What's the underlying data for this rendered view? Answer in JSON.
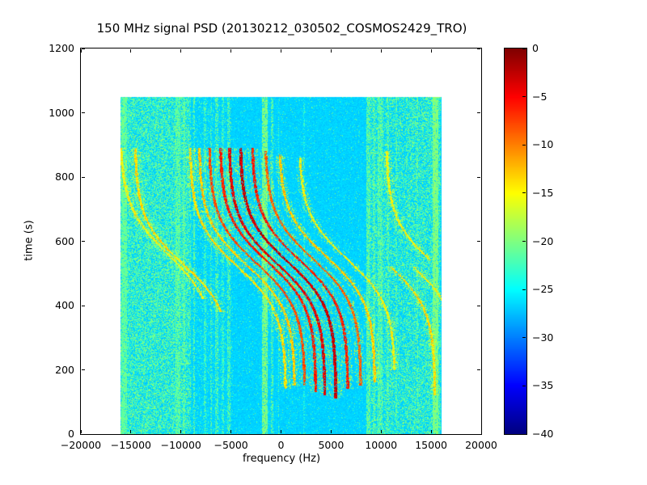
{
  "figure": {
    "background": "#ffffff"
  },
  "chart_data": {
    "type": "heatmap",
    "title": "150 MHz signal PSD (20130212_030502_COSMOS2429_TRO)",
    "xlabel": "frequency (Hz)",
    "ylabel": "time (s)",
    "xlim": [
      -20000,
      20000
    ],
    "ylim": [
      0,
      1200
    ],
    "xticks": {
      "values": [
        -20000,
        -15000,
        -10000,
        -5000,
        0,
        5000,
        10000,
        15000,
        20000
      ],
      "labels": [
        "−20000",
        "−15000",
        "−10000",
        "−5000",
        "0",
        "5000",
        "10000",
        "15000",
        "20000"
      ]
    },
    "yticks": {
      "values": [
        0,
        200,
        400,
        600,
        800,
        1000,
        1200
      ],
      "labels": [
        "0",
        "200",
        "400",
        "600",
        "800",
        "1000",
        "1200"
      ]
    },
    "colormap": "jet",
    "grid": false,
    "legend": false,
    "colorbar": {
      "range_db": [
        -40,
        0
      ],
      "ticks": {
        "values": [
          0,
          -5,
          -10,
          -15,
          -20,
          -25,
          -30,
          -35,
          -40
        ],
        "labels": [
          "0",
          "−5",
          "−10",
          "−15",
          "−20",
          "−25",
          "−30",
          "−35",
          "−40"
        ]
      }
    },
    "data_extent": {
      "freq_hz": [
        -16000,
        16000
      ],
      "time_s": [
        0,
        1050
      ]
    },
    "background_db": -27.5,
    "noise_regions": [
      {
        "f_min": -16000,
        "f_max": -9000,
        "prob": 0.5,
        "db": -21
      },
      {
        "f_min": -9000,
        "f_max": -4800,
        "prob": 0.12,
        "db": -22
      },
      {
        "f_min": -4800,
        "f_max": 8500,
        "prob": 0.04,
        "db": -22
      },
      {
        "f_min": 8500,
        "f_max": 12500,
        "prob": 0.38,
        "db": -21
      },
      {
        "f_min": 12500,
        "f_max": 16000,
        "prob": 0.45,
        "db": -21
      }
    ],
    "stripes": [
      {
        "f": -15700,
        "halfwidth": 300,
        "db": -21,
        "prob": 0.75
      },
      {
        "f": -10300,
        "halfwidth": 250,
        "db": -21,
        "prob": 0.6
      },
      {
        "f": -9700,
        "halfwidth": 150,
        "db": -21,
        "prob": 0.55
      },
      {
        "f": -8700,
        "halfwidth": 100,
        "db": -21,
        "prob": 0.5
      },
      {
        "f": -7600,
        "halfwidth": 120,
        "db": -22,
        "prob": 0.5
      },
      {
        "f": -7000,
        "halfwidth": 100,
        "db": -21,
        "prob": 0.45
      },
      {
        "f": -6400,
        "halfwidth": 150,
        "db": -21,
        "prob": 0.5
      },
      {
        "f": -5800,
        "halfwidth": 120,
        "db": -22,
        "prob": 0.45
      },
      {
        "f": -5200,
        "halfwidth": 150,
        "db": -21,
        "prob": 0.5
      },
      {
        "f": -1600,
        "halfwidth": 260,
        "db": -20,
        "prob": 0.8
      },
      {
        "f": -900,
        "halfwidth": 100,
        "db": -21,
        "prob": 0.5
      },
      {
        "f": -250,
        "halfwidth": 60,
        "db": -22,
        "prob": 0.5
      },
      {
        "f": 2300,
        "halfwidth": 60,
        "db": -23,
        "prob": 0.35
      },
      {
        "f": 8700,
        "halfwidth": 200,
        "db": -21,
        "prob": 0.55
      },
      {
        "f": 9300,
        "halfwidth": 150,
        "db": -21,
        "prob": 0.5
      },
      {
        "f": 9900,
        "halfwidth": 250,
        "db": -21,
        "prob": 0.6
      },
      {
        "f": 10700,
        "halfwidth": 120,
        "db": -21,
        "prob": 0.45
      },
      {
        "f": 11500,
        "halfwidth": 100,
        "db": -21,
        "prob": 0.45
      },
      {
        "f": 13600,
        "halfwidth": 90,
        "db": -21,
        "prob": 0.4
      },
      {
        "f": 15400,
        "halfwidth": 280,
        "db": -20,
        "prob": 0.85
      }
    ],
    "doppler_traces": [
      {
        "fc": -11300,
        "amp": 4800,
        "t0": 560,
        "tau": 150,
        "t_range": [
          420,
          890
        ],
        "db": -15,
        "halfwidth": 130
      },
      {
        "fc": -9800,
        "amp": 4800,
        "t0": 530,
        "tau": 140,
        "t_range": [
          380,
          890
        ],
        "db": -14,
        "halfwidth": 130
      },
      {
        "fc": -4300,
        "amp": 4800,
        "t0": 520,
        "tau": 140,
        "t_range": [
          140,
          890
        ],
        "db": -14,
        "halfwidth": 130
      },
      {
        "fc": -3400,
        "amp": 4800,
        "t0": 525,
        "tau": 140,
        "t_range": [
          150,
          890
        ],
        "db": -13,
        "halfwidth": 130
      },
      {
        "fc": -2400,
        "amp": 4800,
        "t0": 530,
        "tau": 140,
        "t_range": [
          150,
          890
        ],
        "db": -8,
        "halfwidth": 130
      },
      {
        "fc": -1300,
        "amp": 4800,
        "t0": 535,
        "tau": 140,
        "t_range": [
          130,
          890
        ],
        "db": -6,
        "halfwidth": 140
      },
      {
        "fc": -400,
        "amp": 4800,
        "t0": 530,
        "tau": 140,
        "t_range": [
          120,
          890
        ],
        "db": -4,
        "halfwidth": 140
      },
      {
        "fc": 700,
        "amp": 4800,
        "t0": 535,
        "tau": 140,
        "t_range": [
          110,
          890
        ],
        "db": -3,
        "halfwidth": 150
      },
      {
        "fc": 1900,
        "amp": 4800,
        "t0": 540,
        "tau": 140,
        "t_range": [
          140,
          890
        ],
        "db": -6,
        "halfwidth": 140
      },
      {
        "fc": 3200,
        "amp": 4800,
        "t0": 545,
        "tau": 140,
        "t_range": [
          150,
          880
        ],
        "db": -9,
        "halfwidth": 130
      },
      {
        "fc": 4600,
        "amp": 4800,
        "t0": 550,
        "tau": 140,
        "t_range": [
          160,
          870
        ],
        "db": -13,
        "halfwidth": 130
      },
      {
        "fc": 6600,
        "amp": 4800,
        "t0": 545,
        "tau": 140,
        "t_range": [
          200,
          860
        ],
        "db": -15,
        "halfwidth": 120
      },
      {
        "fc": 10600,
        "amp": 4800,
        "t0": 530,
        "tau": 140,
        "t_range": [
          120,
          520
        ],
        "db": -14,
        "halfwidth": 120
      },
      {
        "fc": 12900,
        "amp": 4800,
        "t0": 530,
        "tau": 140,
        "t_range": [
          300,
          520
        ],
        "db": -15,
        "halfwidth": 120
      },
      {
        "fc": 15300,
        "amp": 4800,
        "t0": 530,
        "tau": 140,
        "t_range": [
          540,
          880
        ],
        "db": -15,
        "halfwidth": 120
      }
    ]
  }
}
